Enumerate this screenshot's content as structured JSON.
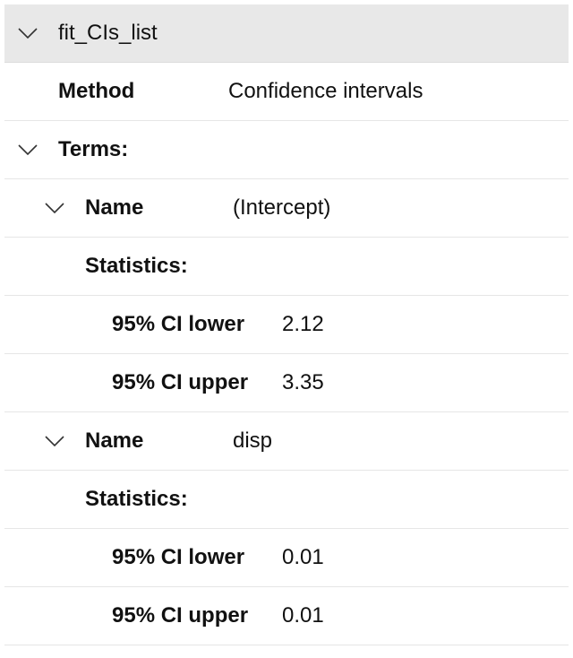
{
  "root": {
    "title": "fit_CIs_list",
    "method_label": "Method",
    "method_value": "Confidence intervals",
    "terms_label": "Terms:"
  },
  "terms": [
    {
      "name_label": "Name",
      "name_value": "(Intercept)",
      "statistics_label": "Statistics:",
      "lower_label": "95% CI lower",
      "lower_value": "2.12",
      "upper_label": "95% CI upper",
      "upper_value": "3.35"
    },
    {
      "name_label": "Name",
      "name_value": "disp",
      "statistics_label": "Statistics:",
      "lower_label": "95% CI lower",
      "lower_value": "0.01",
      "upper_label": "95% CI upper",
      "upper_value": "0.01"
    }
  ],
  "icons": {
    "expand": "chevron-down-icon"
  },
  "colors": {
    "header_bg": "#e8e8e8",
    "divider": "#e6e6e6",
    "text": "#111111"
  }
}
